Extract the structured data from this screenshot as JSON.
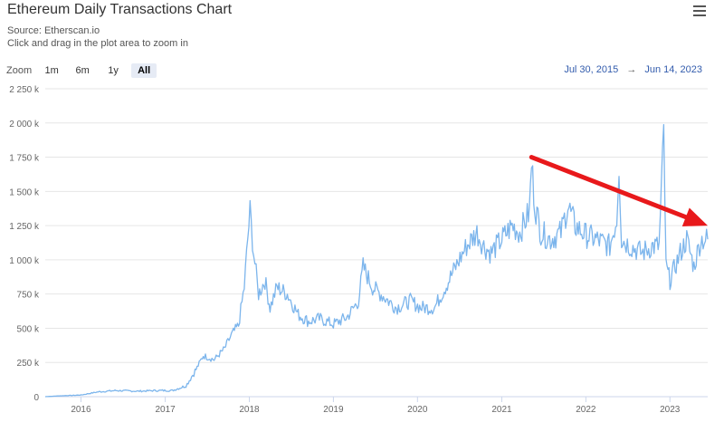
{
  "header": {
    "title": "Ethereum Daily Transactions Chart",
    "source": "Source: Etherscan.io",
    "hint": "Click and drag in the plot area to zoom in",
    "menu_icon": "hamburger-menu-icon"
  },
  "zoom": {
    "label": "Zoom",
    "buttons": [
      "1m",
      "6m",
      "1y",
      "All"
    ],
    "active": "All"
  },
  "range": {
    "from": "Jul 30, 2015",
    "to": "Jun 14, 2023",
    "separator": "→"
  },
  "colors": {
    "series": "#7cb5ec",
    "trend_arrow": "#e8191b",
    "grid": "#e6e6e6"
  },
  "chart_data": {
    "type": "line",
    "title": "Ethereum Daily Transactions Chart",
    "xlabel": "",
    "ylabel": "",
    "x_start": "2015-07-30",
    "x_end": "2023-06-14",
    "ylim": [
      0,
      2250000
    ],
    "y_ticks": [
      {
        "value": 0,
        "label": "0"
      },
      {
        "value": 250000,
        "label": "250 k"
      },
      {
        "value": 500000,
        "label": "500 k"
      },
      {
        "value": 750000,
        "label": "750 k"
      },
      {
        "value": 1000000,
        "label": "1 000 k"
      },
      {
        "value": 1250000,
        "label": "1 250 k"
      },
      {
        "value": 1500000,
        "label": "1 500 k"
      },
      {
        "value": 1750000,
        "label": "1 750 k"
      },
      {
        "value": 2000000,
        "label": "2 000 k"
      },
      {
        "value": 2250000,
        "label": "2 250 k"
      }
    ],
    "x_ticks": [
      {
        "date": "2016-01-01",
        "label": "2016"
      },
      {
        "date": "2017-01-01",
        "label": "2017"
      },
      {
        "date": "2018-01-01",
        "label": "2018"
      },
      {
        "date": "2019-01-01",
        "label": "2019"
      },
      {
        "date": "2020-01-01",
        "label": "2020"
      },
      {
        "date": "2021-01-01",
        "label": "2021"
      },
      {
        "date": "2022-01-01",
        "label": "2022"
      },
      {
        "date": "2023-01-01",
        "label": "2023"
      }
    ],
    "grid": true,
    "series": [
      {
        "name": "",
        "points": [
          [
            "2015-07-30",
            0
          ],
          [
            "2015-10-01",
            6000
          ],
          [
            "2016-01-01",
            12000
          ],
          [
            "2016-03-15",
            35000
          ],
          [
            "2016-06-01",
            45000
          ],
          [
            "2016-09-01",
            40000
          ],
          [
            "2016-12-01",
            45000
          ],
          [
            "2017-02-01",
            45000
          ],
          [
            "2017-04-01",
            80000
          ],
          [
            "2017-05-15",
            200000
          ],
          [
            "2017-06-15",
            300000
          ],
          [
            "2017-08-01",
            270000
          ],
          [
            "2017-09-15",
            350000
          ],
          [
            "2017-10-15",
            450000
          ],
          [
            "2017-11-15",
            520000
          ],
          [
            "2017-12-10",
            800000
          ],
          [
            "2017-12-25",
            1150000
          ],
          [
            "2018-01-04",
            1350000
          ],
          [
            "2018-01-20",
            1050000
          ],
          [
            "2018-02-10",
            750000
          ],
          [
            "2018-03-10",
            850000
          ],
          [
            "2018-04-01",
            650000
          ],
          [
            "2018-05-01",
            800000
          ],
          [
            "2018-06-15",
            750000
          ],
          [
            "2018-08-01",
            600000
          ],
          [
            "2018-09-15",
            550000
          ],
          [
            "2018-11-01",
            570000
          ],
          [
            "2019-01-01",
            530000
          ],
          [
            "2019-03-01",
            580000
          ],
          [
            "2019-04-20",
            700000
          ],
          [
            "2019-05-10",
            950000
          ],
          [
            "2019-06-20",
            800000
          ],
          [
            "2019-08-01",
            740000
          ],
          [
            "2019-10-01",
            650000
          ],
          [
            "2019-12-01",
            700000
          ],
          [
            "2020-01-15",
            650000
          ],
          [
            "2020-03-15",
            650000
          ],
          [
            "2020-05-01",
            800000
          ],
          [
            "2020-06-15",
            950000
          ],
          [
            "2020-08-01",
            1100000
          ],
          [
            "2020-09-15",
            1200000
          ],
          [
            "2020-10-15",
            1100000
          ],
          [
            "2020-11-15",
            1050000
          ],
          [
            "2021-01-01",
            1150000
          ],
          [
            "2021-02-15",
            1250000
          ],
          [
            "2021-03-20",
            1200000
          ],
          [
            "2021-05-01",
            1350000
          ],
          [
            "2021-05-10",
            1700000
          ],
          [
            "2021-05-25",
            1400000
          ],
          [
            "2021-06-20",
            1200000
          ],
          [
            "2021-08-01",
            1150000
          ],
          [
            "2021-09-15",
            1200000
          ],
          [
            "2021-10-15",
            1400000
          ],
          [
            "2021-11-15",
            1250000
          ],
          [
            "2022-01-01",
            1180000
          ],
          [
            "2022-02-15",
            1150000
          ],
          [
            "2022-04-15",
            1100000
          ],
          [
            "2022-05-15",
            1300000
          ],
          [
            "2022-05-25",
            1700000
          ],
          [
            "2022-06-05",
            1150000
          ],
          [
            "2022-07-15",
            1100000
          ],
          [
            "2022-09-01",
            1050000
          ],
          [
            "2022-10-15",
            1100000
          ],
          [
            "2022-11-15",
            1100000
          ],
          [
            "2022-12-05",
            1920000
          ],
          [
            "2022-12-15",
            950000
          ],
          [
            "2023-01-01",
            850000
          ],
          [
            "2023-02-15",
            1050000
          ],
          [
            "2023-03-15",
            1150000
          ],
          [
            "2023-04-15",
            950000
          ],
          [
            "2023-05-15",
            1150000
          ],
          [
            "2023-06-14",
            1150000
          ]
        ]
      }
    ],
    "annotation": {
      "type": "trend-arrow",
      "from": [
        "2021-05-10",
        1750000
      ],
      "to": [
        "2023-06-14",
        1250000
      ]
    }
  }
}
